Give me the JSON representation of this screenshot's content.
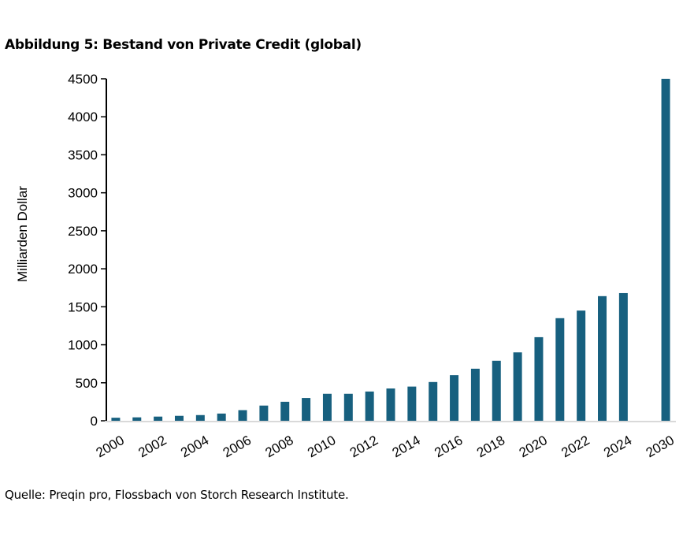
{
  "chart_data": {
    "type": "bar",
    "title": "Abbildung 5: Bestand von Private Credit (global)",
    "xlabel": "",
    "ylabel": "Milliarden Dollar",
    "ylim": [
      0,
      4500
    ],
    "yticks": [
      0,
      500,
      1000,
      1500,
      2000,
      2500,
      3000,
      3500,
      4000,
      4500
    ],
    "categories": [
      "2000",
      "2001",
      "2002",
      "2003",
      "2004",
      "2005",
      "2006",
      "2007",
      "2008",
      "2009",
      "2010",
      "2011",
      "2012",
      "2013",
      "2014",
      "2015",
      "2016",
      "2017",
      "2018",
      "2019",
      "2020",
      "2021",
      "2022",
      "2023",
      "2024",
      "",
      "2030"
    ],
    "xtick_labels": [
      "2000",
      "2002",
      "2004",
      "2006",
      "2008",
      "2010",
      "2012",
      "2014",
      "2016",
      "2018",
      "2020",
      "2022",
      "2024",
      "2030"
    ],
    "values": [
      40,
      45,
      55,
      65,
      75,
      95,
      140,
      200,
      250,
      300,
      355,
      355,
      385,
      425,
      450,
      510,
      600,
      685,
      790,
      900,
      1100,
      1350,
      1450,
      1640,
      1680,
      null,
      4500
    ],
    "bar_color": "#17607f",
    "grid": false,
    "legend": "none"
  },
  "source": "Quelle: Preqin pro, Flossbach von Storch Research Institute."
}
